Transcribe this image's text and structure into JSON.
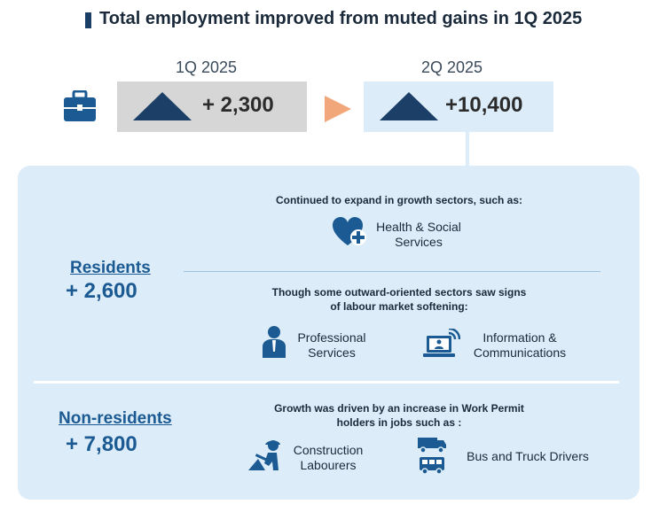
{
  "title": "Total employment improved from muted gains in 1Q 2025",
  "quarters": [
    {
      "label": "1Q 2025",
      "value": "+ 2,300"
    },
    {
      "label": "2Q 2025",
      "value": "+10,400"
    }
  ],
  "residents": {
    "title": "Residents",
    "value": "+ 2,600",
    "growth_note": "Continued to expand in growth sectors, such as:",
    "growth_sectors": [
      "Health & Social",
      "Services"
    ],
    "softening_note_line1": "Though some outward-oriented sectors saw signs",
    "softening_note_line2": "of labour market softening:",
    "professional_line1": "Professional",
    "professional_line2": "Services",
    "info_line1": "Information &",
    "info_line2": "Communications"
  },
  "non_residents": {
    "title": "Non-residents",
    "value": "+ 7,800",
    "note_line1": "Growth was driven by an increase in Work Permit",
    "note_line2": "holders in jobs such as :",
    "construction_line1": "Construction",
    "construction_line2": "Labourers",
    "drivers": "Bus and Truck Drivers"
  },
  "colors": {
    "accent": "#1b5a92",
    "dark_navy": "#1b3f66",
    "panel": "#dcecf8",
    "box1": "#d6d6d6",
    "arrow": "#f2a77a"
  }
}
